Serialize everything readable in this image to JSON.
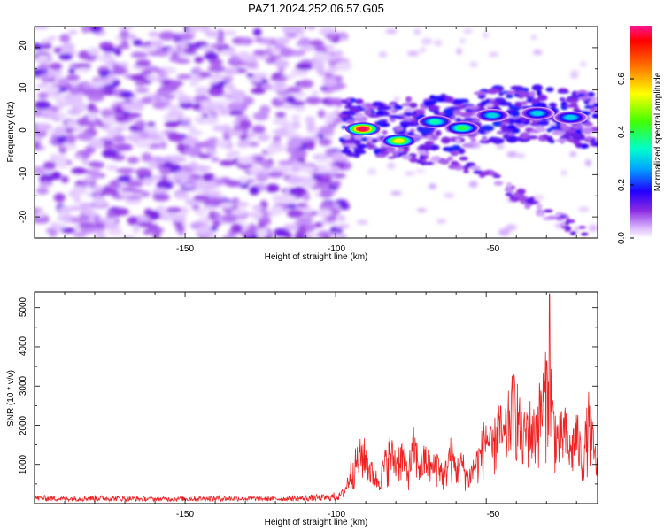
{
  "title": "PAZ1.2024.252.06.57.G05",
  "chart_data": [
    {
      "type": "heatmap",
      "xlabel": "Height of straight line (km)",
      "ylabel": "Frequency (Hz)",
      "xlim": [
        -200,
        -13
      ],
      "ylim": [
        -25,
        25
      ],
      "xticks": [
        "-150",
        "-100",
        "-50"
      ],
      "yticks": [
        "20",
        "10",
        "0",
        "-10",
        "-20"
      ],
      "colorbar": {
        "label": "Normalized spectral amplitude",
        "range": [
          0,
          0.8
        ],
        "ticks": [
          "0.0",
          "0.2",
          "0.4",
          "0.6"
        ]
      },
      "ridge": [
        {
          "x": -97,
          "y": 1.5
        },
        {
          "x": -92,
          "y": 0.8
        },
        {
          "x": -88,
          "y": 0.5
        },
        {
          "x": -82,
          "y": 0.2
        },
        {
          "x": -76,
          "y": 1.5
        },
        {
          "x": -70,
          "y": 2.5
        },
        {
          "x": -64,
          "y": 2.0
        },
        {
          "x": -58,
          "y": 1.0
        },
        {
          "x": -52,
          "y": 3.5
        },
        {
          "x": -46,
          "y": 4.0
        },
        {
          "x": -40,
          "y": 5.0
        },
        {
          "x": -34,
          "y": 4.5
        },
        {
          "x": -28,
          "y": 4.0
        },
        {
          "x": -22,
          "y": 3.5
        },
        {
          "x": -15,
          "y": 3.0
        }
      ],
      "peaks": [
        {
          "x": -91,
          "y": 0.8,
          "amplitude": 0.78
        },
        {
          "x": -79,
          "y": -2.0,
          "amplitude": 0.55
        },
        {
          "x": -67,
          "y": 2.5,
          "amplitude": 0.35
        },
        {
          "x": -58,
          "y": 1.0,
          "amplitude": 0.4
        },
        {
          "x": -48,
          "y": 4.0,
          "amplitude": 0.3
        },
        {
          "x": -33,
          "y": 4.5,
          "amplitude": 0.3
        },
        {
          "x": -22,
          "y": 3.5,
          "amplitude": 0.3
        }
      ],
      "branch": [
        {
          "x": -85,
          "y": -4.0
        },
        {
          "x": -70,
          "y": -6.0
        },
        {
          "x": -55,
          "y": -8.0
        },
        {
          "x": -45,
          "y": -12.0
        },
        {
          "x": -35,
          "y": -17.0
        },
        {
          "x": -25,
          "y": -21.0
        },
        {
          "x": -17,
          "y": -24.0
        }
      ]
    },
    {
      "type": "line",
      "xlabel": "Height of straight line (km)",
      "ylabel": "SNR (10 * v/v)",
      "xlim": [
        -200,
        -13
      ],
      "ylim": [
        0,
        5400
      ],
      "xticks": [
        "-150",
        "-100",
        "-50"
      ],
      "yticks": [
        "5000",
        "4000",
        "3000",
        "2000",
        "1000"
      ],
      "color": "#ee2222",
      "series": [
        {
          "x": [
            -200,
            -190,
            -180,
            -170,
            -160,
            -150,
            -140,
            -130,
            -120,
            -110,
            -102,
            -99,
            -97,
            -95,
            -93,
            -91,
            -90,
            -88,
            -86,
            -84,
            -82,
            -80,
            -78,
            -76,
            -74,
            -72,
            -70,
            -68,
            -66,
            -64,
            -62,
            -60,
            -58,
            -56,
            -54,
            -52,
            -50,
            -48,
            -46,
            -44,
            -42,
            -40,
            -38,
            -36,
            -34,
            -32,
            -30,
            -29,
            -28,
            -26,
            -24,
            -22,
            -20,
            -18,
            -16,
            -14,
            -13
          ],
          "values": [
            150,
            110,
            140,
            120,
            100,
            110,
            130,
            120,
            110,
            140,
            170,
            250,
            450,
            1100,
            1500,
            1800,
            1600,
            1100,
            800,
            1300,
            1800,
            1500,
            1700,
            1100,
            2000,
            1300,
            1600,
            1200,
            1500,
            900,
            1800,
            1200,
            1400,
            900,
            1300,
            1700,
            2500,
            1800,
            2800,
            2200,
            3200,
            3500,
            2200,
            2800,
            2500,
            3300,
            4000,
            5350,
            3000,
            2200,
            2600,
            1800,
            2500,
            1500,
            2900,
            1700,
            1300
          ]
        }
      ]
    }
  ]
}
